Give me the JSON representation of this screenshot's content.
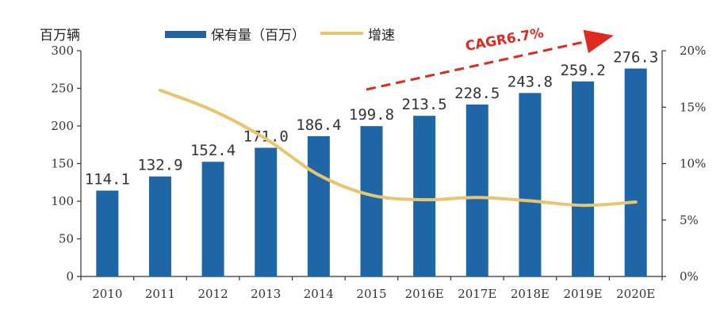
{
  "chart_data": {
    "type": "bar",
    "categories": [
      "2010",
      "2011",
      "2012",
      "2013",
      "2014",
      "2015",
      "2016E",
      "2017E",
      "2018E",
      "2019E",
      "2020E"
    ],
    "series": [
      {
        "name": "保有量（百万）",
        "type": "bar",
        "axis": "left",
        "values": [
          114.1,
          132.9,
          152.4,
          171.0,
          186.4,
          199.8,
          213.5,
          228.5,
          243.8,
          259.2,
          276.3
        ],
        "labels": [
          "114.1",
          "132.9",
          "152.4",
          "171.0",
          "186.4",
          "199.8",
          "213.5",
          "228.5",
          "243.8",
          "259.2",
          "276.3"
        ]
      },
      {
        "name": "增速",
        "type": "line",
        "axis": "right",
        "values": [
          null,
          16.5,
          14.7,
          12.2,
          9.0,
          7.2,
          6.8,
          7.0,
          6.7,
          6.3,
          6.6
        ]
      }
    ],
    "ylabel": "百万辆",
    "ylim": [
      0,
      300
    ],
    "yticks": [
      "0",
      "50",
      "100",
      "150",
      "200",
      "250",
      "300"
    ],
    "y2lim": [
      0,
      20
    ],
    "y2ticks": [
      "0%",
      "5%",
      "10%",
      "15%",
      "20%"
    ],
    "annotation": "CAGR6.7%",
    "legend_position": "top",
    "colors": {
      "bar": "#1f66a6",
      "line": "#e8c56e",
      "annotation": "#e02a1f",
      "axis": "#333333"
    },
    "grid": false
  }
}
